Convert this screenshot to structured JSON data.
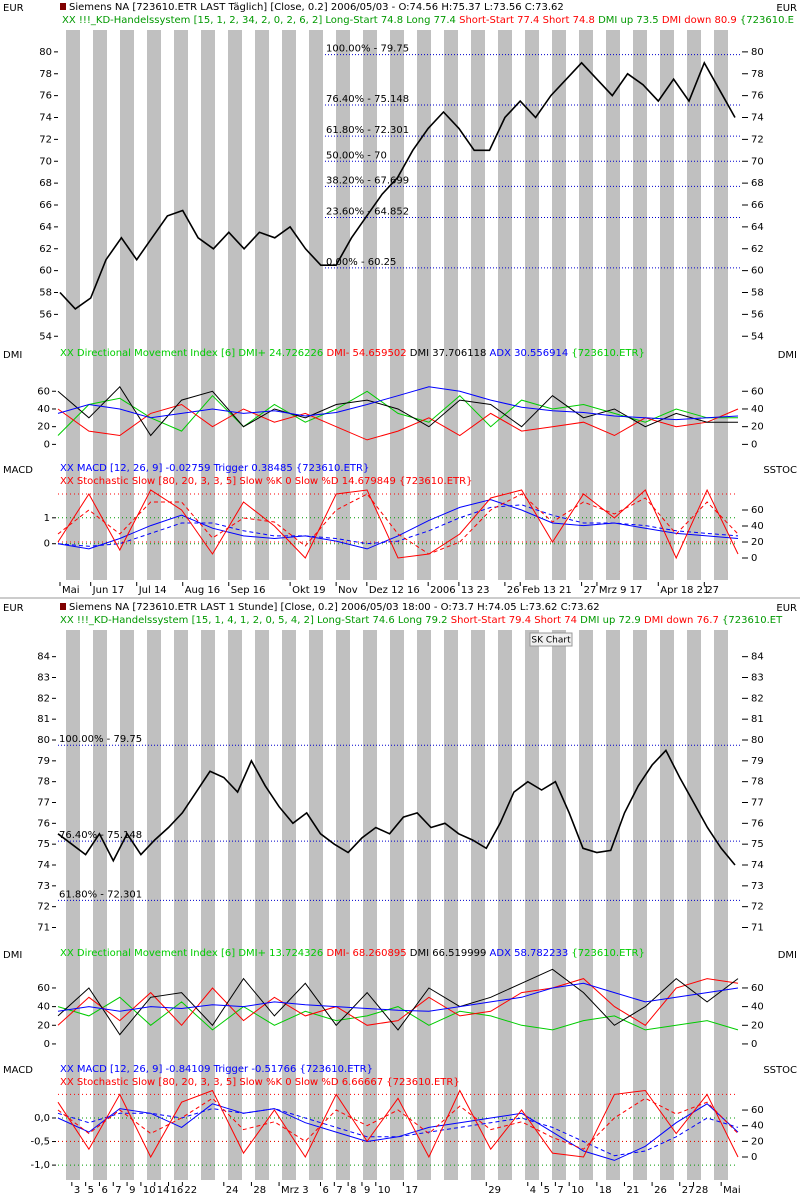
{
  "chart_data": [
    {
      "type": "line",
      "title": "Siemens NA [723610.ETR LAST Täglich] [Close, 0.2] 2006/05/03 - O:74.56 H:75.37 L:73.56 C:73.62",
      "headers": [
        [
          {
            "text": "XX !!!_KD-Handelssystem [15, 1, 2, 34, 2, 0, 2, 6, 2] Long-Start 74.8 Long 77.4",
            "color": "#009900"
          },
          {
            "text": "Short-Start 77.4 Short 74.8",
            "color": "#ff0000"
          },
          {
            "text": "DMI up 73.5",
            "color": "#009900"
          },
          {
            "text": "DMI down 80.9",
            "color": "#ff0000"
          },
          {
            "text": "{723610.E",
            "color": "#009900"
          }
        ]
      ],
      "axis_label": "EUR",
      "categories": [
        "Mai",
        null,
        "Jun 17",
        null,
        null,
        "Jul 14",
        null,
        null,
        "Aug 16",
        null,
        null,
        "Sep 16",
        null,
        null,
        null,
        "Okt 19",
        null,
        null,
        "Nov",
        null,
        "Dez 12 16",
        null,
        null,
        null,
        "2006",
        null,
        "13 23",
        null,
        null,
        "26",
        "Feb 13 21",
        null,
        null,
        null,
        "27",
        "Mrz 9 17",
        null,
        null,
        null,
        "Apr 18 21",
        null,
        null,
        "27",
        null,
        null
      ],
      "series": [
        {
          "color": "#000000",
          "values": [
            58,
            56.5,
            57.5,
            61,
            63,
            61,
            63,
            65,
            65.5,
            63,
            62,
            63.5,
            62,
            63.5,
            63,
            64,
            62,
            60.5,
            60.5,
            63,
            65,
            67,
            68.5,
            71,
            73,
            74.5,
            73,
            71,
            71,
            74,
            75.5,
            74,
            76,
            77.5,
            79,
            77.5,
            76,
            78,
            77,
            75.5,
            77.5,
            75.5,
            79,
            76.5,
            74
          ]
        }
      ],
      "ylim": [
        53.2,
        82
      ],
      "yticks": [
        54,
        56,
        58,
        60,
        62,
        64,
        66,
        68,
        70,
        72,
        74,
        76,
        78,
        80
      ],
      "annotation_color": "#0000cc",
      "annotations": [
        {
          "label": "100.00% - 79.75",
          "value": 79.75
        },
        {
          "label": "76.40% - 75.148",
          "value": 75.148
        },
        {
          "label": "61.80% - 72.301",
          "value": 72.301
        },
        {
          "label": "50.00% - 70",
          "value": 70
        },
        {
          "label": "38.20% - 67.699",
          "value": 67.699
        },
        {
          "label": "23.60% - 64.852",
          "value": 64.852
        },
        {
          "label": "0.00% - 60.25",
          "value": 60.25
        }
      ]
    },
    {
      "type": "line",
      "headers": [
        [
          {
            "text": "XX Directional Movement Index [6] DMI+ 24.726226",
            "color": "#00cc00"
          },
          {
            "text": "DMI- 54.659502",
            "color": "#ff0000"
          },
          {
            "text": "DMI 37.706118",
            "color": "#000000"
          },
          {
            "text": "ADX 30.556914",
            "color": "#0000ff"
          },
          {
            "text": "{723610.ETR}",
            "color": "#00cc00"
          }
        ]
      ],
      "axis_label": "DMI",
      "series": [
        {
          "color": "#00cc00",
          "values": [
            10,
            45,
            52,
            30,
            15,
            55,
            20,
            45,
            25,
            40,
            60,
            35,
            25,
            55,
            20,
            50,
            40,
            45,
            35,
            25,
            40,
            30,
            30
          ]
        },
        {
          "color": "#ff0000",
          "values": [
            40,
            15,
            10,
            35,
            45,
            20,
            40,
            25,
            35,
            20,
            5,
            15,
            30,
            10,
            35,
            15,
            20,
            25,
            10,
            30,
            20,
            25,
            40
          ]
        },
        {
          "color": "#000000",
          "values": [
            60,
            30,
            65,
            10,
            50,
            60,
            20,
            40,
            30,
            45,
            50,
            40,
            20,
            50,
            45,
            20,
            55,
            30,
            40,
            20,
            35,
            25,
            25
          ]
        },
        {
          "color": "#0000ff",
          "values": [
            35,
            45,
            40,
            30,
            35,
            40,
            35,
            38,
            32,
            36,
            45,
            55,
            65,
            60,
            50,
            42,
            38,
            36,
            32,
            30,
            28,
            30,
            32
          ]
        }
      ],
      "ylim": [
        -12,
        84
      ],
      "yticks": [
        0,
        20,
        40,
        60
      ]
    },
    {
      "type": "line",
      "headers": [
        [
          {
            "text": "XX MACD [12, 26, 9] -0.02759 Trigger 0.38485 {723610.ETR}",
            "color": "#0000ff"
          }
        ],
        [
          {
            "text": "XX Stochastic Slow [80, 20, 3, 3, 5] Slow %K 0 Slow %D 14.679849 {723610.ETR}",
            "color": "#ff0000"
          }
        ]
      ],
      "axis_label": "MACD",
      "axis_label_right": "SSTOC",
      "series": [
        {
          "color": "#0000ff",
          "values": [
            0,
            -0.2,
            0.2,
            0.7,
            1.1,
            0.6,
            0.3,
            0.2,
            0.3,
            0.1,
            -0.2,
            0.3,
            0.9,
            1.4,
            1.7,
            1.3,
            0.8,
            0.7,
            0.8,
            0.6,
            0.4,
            0.3,
            0.2
          ]
        },
        {
          "color": "#0000ff",
          "dashed": true,
          "values": [
            0,
            -0.1,
            0,
            0.4,
            0.8,
            0.8,
            0.5,
            0.3,
            0.3,
            0.2,
            0,
            0.1,
            0.5,
            1.0,
            1.4,
            1.5,
            1.1,
            0.8,
            0.8,
            0.7,
            0.5,
            0.4,
            0.3
          ]
        },
        {
          "color": "#ff0000",
          "axis": "y2",
          "values": [
            20,
            80,
            10,
            85,
            60,
            5,
            70,
            40,
            0,
            80,
            85,
            0,
            5,
            30,
            75,
            85,
            20,
            80,
            50,
            85,
            0,
            85,
            5
          ]
        },
        {
          "color": "#ff0000",
          "axis": "y2",
          "dashed": true,
          "values": [
            30,
            60,
            30,
            70,
            70,
            25,
            50,
            45,
            15,
            60,
            80,
            30,
            5,
            20,
            60,
            80,
            45,
            70,
            55,
            75,
            30,
            70,
            30
          ]
        }
      ],
      "ylim": [
        -1.4,
        2.15
      ],
      "yticks": [
        0,
        1
      ],
      "grid": true,
      "grid_color": "#009900",
      "y2lim": [
        -27.5,
        87.5
      ],
      "y2ticks": [
        0,
        20,
        40,
        60
      ],
      "levels": [
        20,
        80
      ],
      "level_color": "#ff0000"
    },
    {
      "type": "line",
      "title": "Siemens NA [723610.ETR LAST 1 Stunde] [Close, 0.2] 2006/05/03 18:00 - O:73.7 H:74.05 L:73.62 C:73.62",
      "headers": [
        [
          {
            "text": "XX !!!_KD-Handelssystem [15, 1, 4, 1, 2, 0, 5, 4, 2] Long-Start 74.6 Long 79.2",
            "color": "#009900"
          },
          {
            "text": "Short-Start 79.4 Short 74",
            "color": "#ff0000"
          },
          {
            "text": "DMI up 72.9",
            "color": "#009900"
          },
          {
            "text": "DMI down 76.7",
            "color": "#ff0000"
          },
          {
            "text": "{723610.ET",
            "color": "#009900"
          }
        ]
      ],
      "button": "SK Chart",
      "axis_label": "EUR",
      "categories": [
        null,
        "3",
        "5",
        "6",
        "7",
        "9",
        "10",
        "14",
        "16",
        "22",
        null,
        null,
        "24",
        null,
        "28",
        null,
        "Mrz 3",
        null,
        null,
        "6",
        "7",
        "8",
        "9",
        "10",
        null,
        "17",
        null,
        null,
        null,
        null,
        null,
        "29",
        null,
        null,
        "4",
        "5",
        "7",
        "10",
        null,
        "18",
        null,
        "21",
        null,
        "26",
        null,
        "27",
        "28",
        null,
        "Mai",
        null
      ],
      "series": [
        {
          "color": "#000000",
          "values": [
            75.5,
            75,
            74.5,
            75.5,
            74.2,
            75.5,
            74.5,
            75.2,
            75.8,
            76.5,
            77.5,
            78.5,
            78.2,
            77.5,
            79,
            77.8,
            76.8,
            76,
            76.5,
            75.5,
            75,
            74.6,
            75.3,
            75.8,
            75.5,
            76.3,
            76.5,
            75.8,
            76,
            75.5,
            75.2,
            74.8,
            76,
            77.5,
            78,
            77.6,
            78,
            76.5,
            74.8,
            74.6,
            74.7,
            76.5,
            77.8,
            78.8,
            79.5,
            78.2,
            77,
            75.8,
            74.8,
            74
          ]
        }
      ],
      "ylim": [
        70.4,
        84.8
      ],
      "yticks": [
        71,
        72,
        73,
        74,
        75,
        76,
        77,
        78,
        79,
        80,
        81,
        82,
        83,
        84
      ],
      "annotation_color": "#0000cc",
      "annotations": [
        {
          "label": "100.00% - 79.75",
          "value": 79.75
        },
        {
          "label": "76.40% - 75.148",
          "value": 75.148
        },
        {
          "label": "61.80% - 72.301",
          "value": 72.301
        }
      ]
    },
    {
      "type": "line",
      "headers": [
        [
          {
            "text": "XX Directional Movement Index [6] DMI+ 13.724326",
            "color": "#00cc00"
          },
          {
            "text": "DMI- 68.260895",
            "color": "#ff0000"
          },
          {
            "text": "DMI 66.519999",
            "color": "#000000"
          },
          {
            "text": "ADX 58.782233",
            "color": "#0000ff"
          },
          {
            "text": "{723610.ETR}",
            "color": "#00cc00"
          }
        ]
      ],
      "axis_label": "DMI",
      "series": [
        {
          "color": "#00cc00",
          "values": [
            40,
            30,
            50,
            20,
            45,
            15,
            40,
            20,
            35,
            25,
            30,
            40,
            20,
            35,
            30,
            20,
            15,
            25,
            30,
            15,
            20,
            25,
            15
          ]
        },
        {
          "color": "#ff0000",
          "values": [
            20,
            50,
            25,
            55,
            20,
            60,
            25,
            50,
            30,
            40,
            20,
            25,
            50,
            30,
            35,
            55,
            60,
            70,
            40,
            20,
            60,
            70,
            65
          ]
        },
        {
          "color": "#000000",
          "values": [
            30,
            60,
            10,
            50,
            55,
            20,
            70,
            30,
            65,
            20,
            55,
            15,
            60,
            40,
            50,
            65,
            80,
            55,
            20,
            40,
            70,
            45,
            70
          ]
        },
        {
          "color": "#0000ff",
          "values": [
            35,
            40,
            35,
            40,
            38,
            42,
            40,
            45,
            42,
            40,
            38,
            36,
            35,
            40,
            45,
            50,
            60,
            65,
            55,
            45,
            50,
            55,
            60
          ]
        }
      ],
      "ylim": [
        -14,
        84.6
      ],
      "yticks": [
        0,
        20,
        40,
        60
      ]
    },
    {
      "type": "line",
      "headers": [
        [
          {
            "text": "XX MACD [12, 26, 9] -0.84109 Trigger -0.51766 {723610.ETR}",
            "color": "#0000ff"
          }
        ],
        [
          {
            "text": "XX Stochastic Slow [80, 20, 3, 3, 5] Slow %K 0 Slow %D 6.66667 {723610.ETR}",
            "color": "#ff0000"
          }
        ]
      ],
      "axis_label": "MACD",
      "axis_label_right": "SSTOC",
      "series": [
        {
          "color": "#0000ff",
          "values": [
            0,
            -0.3,
            0.2,
            0.1,
            -0.2,
            0.3,
            0.1,
            0.2,
            -0.1,
            -0.3,
            -0.5,
            -0.4,
            -0.2,
            -0.1,
            0,
            0.1,
            -0.3,
            -0.7,
            -0.9,
            -0.6,
            -0.1,
            0.3,
            -0.3
          ]
        },
        {
          "color": "#0000ff",
          "dashed": true,
          "values": [
            0.1,
            -0.1,
            0.1,
            0.1,
            0,
            0.2,
            0.1,
            0.2,
            0,
            -0.2,
            -0.4,
            -0.4,
            -0.3,
            -0.2,
            -0.1,
            0,
            -0.2,
            -0.5,
            -0.8,
            -0.7,
            -0.4,
            0,
            -0.2
          ]
        },
        {
          "color": "#ff0000",
          "axis": "y2",
          "values": [
            70,
            10,
            80,
            0,
            70,
            85,
            5,
            60,
            0,
            80,
            20,
            75,
            0,
            85,
            10,
            60,
            5,
            0,
            80,
            85,
            30,
            80,
            0
          ]
        },
        {
          "color": "#ff0000",
          "axis": "y2",
          "dashed": true,
          "values": [
            60,
            30,
            60,
            30,
            50,
            75,
            35,
            45,
            20,
            60,
            40,
            60,
            30,
            65,
            35,
            45,
            25,
            10,
            50,
            75,
            55,
            70,
            30
          ]
        }
      ],
      "ylim": [
        -1.21,
        0.7
      ],
      "yticks": [
        {
          "value": 0,
          "label": "0,0"
        },
        {
          "value": -0.5,
          "label": "-0,5"
        },
        {
          "value": -1,
          "label": "-1,0"
        }
      ],
      "grid": true,
      "grid_color": "#009900",
      "y2lim": [
        -23,
        92
      ],
      "y2ticks": [
        0,
        20,
        40,
        60
      ],
      "levels": [
        20,
        80
      ],
      "level_color": "#ff0000"
    }
  ]
}
